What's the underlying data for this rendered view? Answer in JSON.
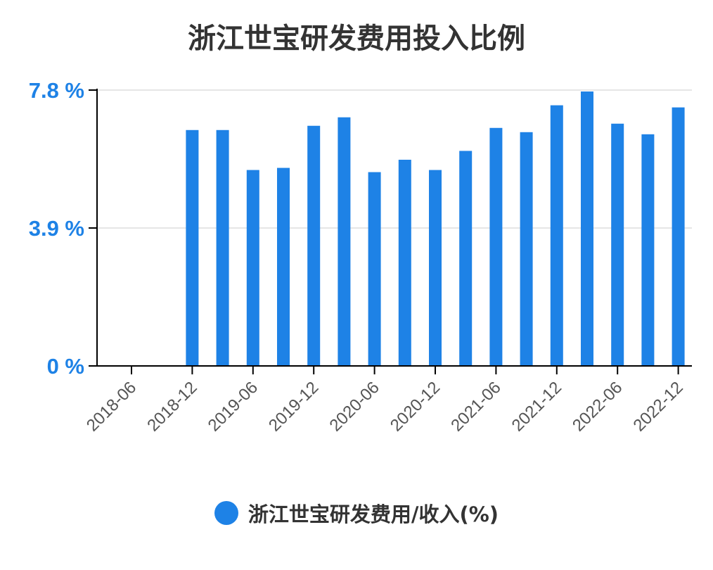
{
  "chart": {
    "title": "浙江世宝研发费用投入比例"
  },
  "colors": {
    "bar": "#1e82e6",
    "axis_label": "#1e82e6",
    "tick_label": "#555555",
    "grid": "#e6e6e6",
    "axis": "#000000"
  },
  "legend": {
    "label": "浙江世宝研发费用/收入(%)",
    "placement": "bottom-center"
  },
  "chart_data": {
    "type": "bar",
    "title": "浙江世宝研发费用投入比例",
    "xlabel": "",
    "ylabel": "",
    "ylim": [
      0,
      7.8
    ],
    "y_ticks": [
      {
        "value": 0,
        "label": "0 %"
      },
      {
        "value": 3.9,
        "label": "3.9 %"
      },
      {
        "value": 7.8,
        "label": "7.8 %"
      }
    ],
    "grid": true,
    "x_ticks": [
      "2018-06",
      "2018-12",
      "2019-06",
      "2019-12",
      "2020-06",
      "2020-12",
      "2021-06",
      "2021-12",
      "2022-06",
      "2022-12"
    ],
    "categories": [
      "2018-12",
      "2019-03",
      "2019-06",
      "2019-09",
      "2019-12",
      "2020-03",
      "2020-06",
      "2020-09",
      "2020-12",
      "2021-03",
      "2021-06",
      "2021-09",
      "2021-12",
      "2022-03",
      "2022-06",
      "2022-09",
      "2022-12"
    ],
    "series": [
      {
        "name": "浙江世宝研发费用/收入(%)",
        "values": [
          6.67,
          6.67,
          5.54,
          5.6,
          6.79,
          7.03,
          5.48,
          5.83,
          5.54,
          6.08,
          6.73,
          6.61,
          7.37,
          7.76,
          6.85,
          6.55,
          7.31
        ]
      }
    ]
  }
}
